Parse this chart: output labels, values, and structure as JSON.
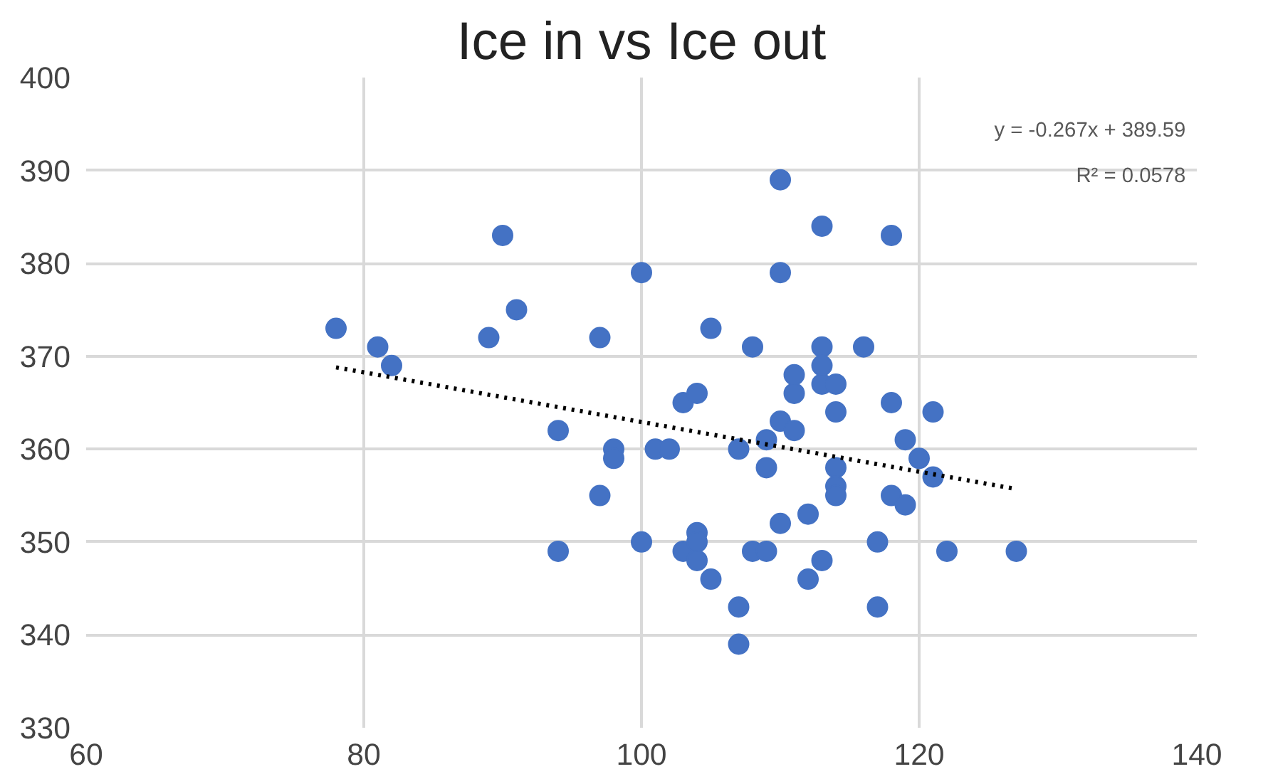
{
  "chart_data": {
    "type": "scatter",
    "title": "Ice in vs Ice out",
    "series": [
      {
        "color": "#4472c4",
        "marker": "circle",
        "x": [
          78,
          81,
          82,
          89,
          90,
          91,
          94,
          94,
          97,
          97,
          98,
          98,
          100,
          100,
          101,
          102,
          103,
          103,
          104,
          104,
          104,
          104,
          105,
          105,
          107,
          107,
          107,
          108,
          108,
          109,
          109,
          109,
          110,
          110,
          110,
          110,
          111,
          111,
          111,
          112,
          112,
          113,
          113,
          113,
          113,
          113,
          114,
          114,
          114,
          114,
          114,
          116,
          117,
          117,
          118,
          118,
          118,
          119,
          119,
          120,
          121,
          121,
          122,
          127
        ],
        "values": [
          373,
          371,
          369,
          372,
          383,
          375,
          362,
          349,
          372,
          355,
          360,
          359,
          379,
          350,
          360,
          360,
          365,
          349,
          366,
          351,
          350,
          348,
          373,
          346,
          360,
          343,
          339,
          371,
          349,
          361,
          358,
          349,
          389,
          379,
          363,
          352,
          368,
          366,
          362,
          353,
          346,
          384,
          371,
          369,
          367,
          348,
          367,
          364,
          358,
          356,
          355,
          371,
          350,
          343,
          383,
          365,
          355,
          361,
          354,
          359,
          364,
          357,
          349,
          349
        ]
      },
      {
        "type": "line",
        "color": "#000000",
        "line_style": "dotted",
        "marker": "none",
        "x": [
          78,
          127
        ],
        "values": [
          368.8,
          355.7
        ]
      }
    ],
    "annotations": [
      "y = -0.267x + 389.59",
      "R² = 0.0578"
    ],
    "xlim": [
      60,
      140
    ],
    "xticks": [
      60,
      80,
      100,
      120,
      140
    ],
    "ylim": [
      330,
      400
    ],
    "yticks": [
      330,
      340,
      350,
      360,
      370,
      380,
      390,
      400
    ],
    "grid": true
  }
}
